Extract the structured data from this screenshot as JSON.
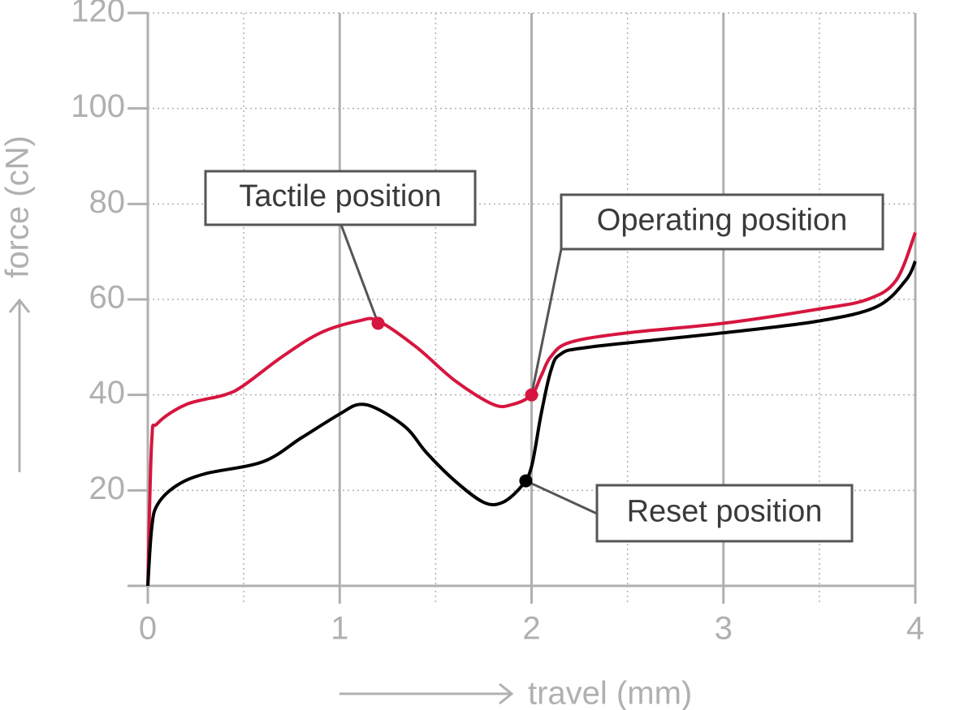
{
  "chart_data": {
    "type": "line",
    "xlabel": "travel (mm)",
    "ylabel": "force (cN)",
    "xlim": [
      0,
      4
    ],
    "ylim": [
      0,
      120
    ],
    "xticks": [
      0,
      1,
      2,
      3,
      4
    ],
    "yticks": [
      20,
      40,
      60,
      80,
      100,
      120
    ],
    "x_minor_ticks": [
      0.5,
      1.5,
      2.5,
      3.5
    ],
    "grid": true,
    "series": [
      {
        "color": "#d6163f",
        "x": [
          0,
          0.02,
          0.05,
          0.2,
          0.4,
          0.5,
          0.7,
          0.9,
          1.1,
          1.2,
          1.4,
          1.6,
          1.8,
          1.9,
          2.0,
          2.05,
          2.1,
          2.2,
          2.5,
          3,
          3.5,
          3.75,
          3.9,
          4
        ],
        "values": [
          0,
          30,
          34,
          38,
          40,
          42,
          48,
          53,
          55.5,
          55.5,
          50,
          43,
          38,
          38,
          40,
          44,
          48,
          51,
          53,
          55,
          58,
          60,
          64,
          74
        ]
      },
      {
        "color": "#000000",
        "x": [
          0,
          0.02,
          0.05,
          0.15,
          0.3,
          0.6,
          0.8,
          1.0,
          1.1,
          1.2,
          1.35,
          1.45,
          1.6,
          1.75,
          1.85,
          1.95,
          2.0,
          2.05,
          2.1,
          2.15,
          2.3,
          3,
          3.5,
          3.8,
          3.95,
          4
        ],
        "values": [
          0,
          12,
          17,
          21,
          23.5,
          26,
          31,
          36,
          38,
          37,
          33,
          28,
          22,
          17.5,
          17.5,
          21,
          25,
          36,
          45,
          48.5,
          50,
          53,
          55.5,
          58.5,
          64,
          68
        ]
      }
    ],
    "annotations": [
      {
        "text": "Tactile position",
        "x": 1.2,
        "y": 55,
        "color": "#d6163f"
      },
      {
        "text": "Operating position",
        "x": 2.0,
        "y": 40,
        "color": "#d6163f"
      },
      {
        "text": "Reset position",
        "x": 1.97,
        "y": 22,
        "color": "#000000"
      }
    ]
  }
}
